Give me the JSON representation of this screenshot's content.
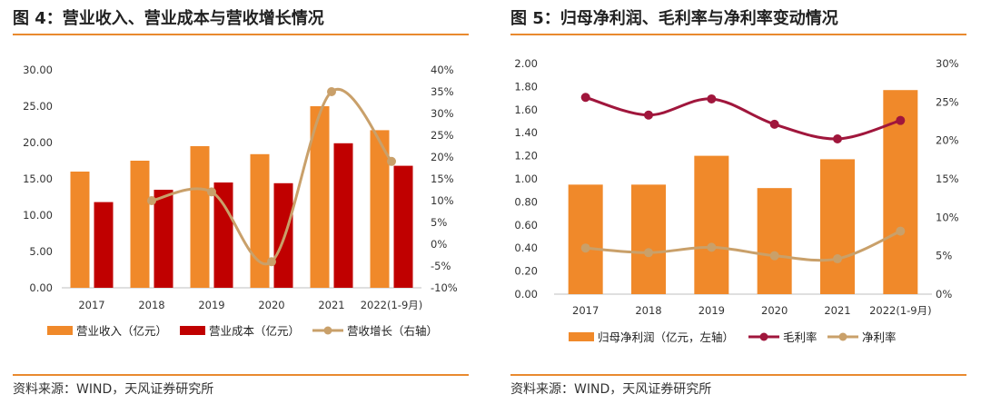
{
  "colors": {
    "accent": "#e98a2e",
    "orange_bar": "#f0892a",
    "dark_red_bar": "#c00000",
    "gold_line": "#c9a06a",
    "wine_line": "#a0163c"
  },
  "left": {
    "title": "图 4：营业收入、营业成本与营收增长情况",
    "source": "资料来源：WIND，天风证券研究所"
  },
  "right": {
    "title": "图 5：归母净利润、毛利率与净利率变动情况",
    "source": "资料来源：WIND，天风证券研究所"
  },
  "chart_data": [
    {
      "type": "bar",
      "id": "fig4",
      "title": "营业收入、营业成本与营收增长情况",
      "categories": [
        "2017",
        "2018",
        "2019",
        "2020",
        "2021",
        "2022(1-9月)"
      ],
      "series": [
        {
          "name": "营业收入（亿元）",
          "type": "bar",
          "axis": "left",
          "values": [
            16.0,
            17.5,
            19.5,
            18.4,
            25.0,
            21.7
          ]
        },
        {
          "name": "营业成本（亿元）",
          "type": "bar",
          "axis": "left",
          "values": [
            11.8,
            13.5,
            14.5,
            14.4,
            19.9,
            16.8
          ]
        },
        {
          "name": "营收增长（右轴）",
          "type": "line",
          "axis": "right",
          "values": [
            null,
            10.0,
            12.0,
            -4.0,
            35.0,
            19.0
          ]
        }
      ],
      "y_left": {
        "min": 0,
        "max": 30,
        "step": 5,
        "ticks": [
          "0.00",
          "5.00",
          "10.00",
          "15.00",
          "20.00",
          "25.00",
          "30.00"
        ]
      },
      "y_right": {
        "min": -10,
        "max": 40,
        "step": 5,
        "ticks": [
          "-10%",
          "-5%",
          "0%",
          "5%",
          "10%",
          "15%",
          "20%",
          "25%",
          "30%",
          "35%",
          "40%"
        ]
      },
      "legend": [
        "营业收入（亿元）",
        "营业成本（亿元）",
        "营收增长（右轴）"
      ],
      "legend_position": "bottom"
    },
    {
      "type": "bar",
      "id": "fig5",
      "title": "归母净利润、毛利率与净利率变动情况",
      "categories": [
        "2017",
        "2018",
        "2019",
        "2020",
        "2021",
        "2022(1-9月)"
      ],
      "series": [
        {
          "name": "归母净利润（亿元，左轴）",
          "type": "bar",
          "axis": "left",
          "values": [
            0.95,
            0.95,
            1.2,
            0.92,
            1.17,
            1.77
          ]
        },
        {
          "name": "毛利率",
          "type": "line",
          "axis": "right",
          "values": [
            25.6,
            23.3,
            25.4,
            22.1,
            20.2,
            22.6
          ]
        },
        {
          "name": "净利率",
          "type": "line",
          "axis": "right",
          "values": [
            6.0,
            5.4,
            6.1,
            5.0,
            4.6,
            8.2
          ]
        }
      ],
      "y_left": {
        "min": 0,
        "max": 2,
        "step": 0.2,
        "ticks": [
          "0.00",
          "0.20",
          "0.40",
          "0.60",
          "0.80",
          "1.00",
          "1.20",
          "1.40",
          "1.60",
          "1.80",
          "2.00"
        ]
      },
      "y_right": {
        "min": 0,
        "max": 30,
        "step": 5,
        "ticks": [
          "0%",
          "5%",
          "10%",
          "15%",
          "20%",
          "25%",
          "30%"
        ]
      },
      "legend": [
        "归母净利润（亿元，左轴）",
        "毛利率",
        "净利率"
      ],
      "legend_position": "bottom"
    }
  ]
}
